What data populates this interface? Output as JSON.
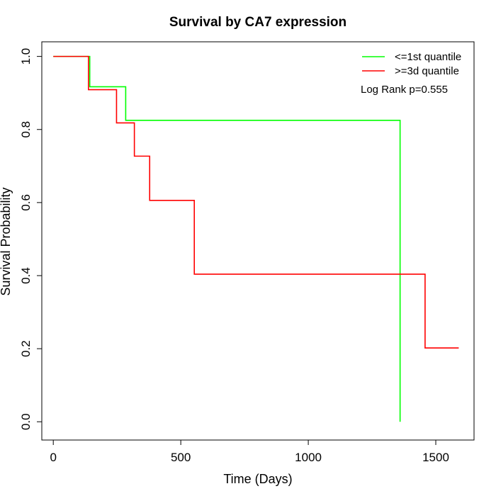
{
  "chart_data": {
    "type": "line",
    "subtype": "kaplan-meier step",
    "title": "Survival by CA7 expression",
    "xlabel": "Time (Days)",
    "ylabel": "Survival Probability",
    "xlim": [
      -45,
      1650
    ],
    "ylim": [
      -0.05,
      1.04
    ],
    "xticks": [
      0,
      500,
      1000,
      1500
    ],
    "yticks": [
      0.0,
      0.2,
      0.4,
      0.6,
      0.8,
      1.0
    ],
    "xtick_labels": [
      "0",
      "500",
      "1000",
      "1500"
    ],
    "ytick_labels": [
      "0.0",
      "0.2",
      "0.4",
      "0.6",
      "0.8",
      "1.0"
    ],
    "grid": false,
    "legend_position": "top-right",
    "annotation": "Log Rank p=0.555",
    "series": [
      {
        "name": "<=1st quantile",
        "color": "#00ff00",
        "steps": [
          {
            "x": 0,
            "y": 1.0
          },
          {
            "x": 143,
            "y": 0.917
          },
          {
            "x": 284,
            "y": 0.825
          },
          {
            "x": 1360,
            "y": 0.0
          }
        ],
        "end_x": 1360
      },
      {
        "name": ">=3d quantile",
        "color": "#ff0000",
        "steps": [
          {
            "x": 0,
            "y": 1.0
          },
          {
            "x": 138,
            "y": 0.909
          },
          {
            "x": 248,
            "y": 0.818
          },
          {
            "x": 318,
            "y": 0.727
          },
          {
            "x": 378,
            "y": 0.606
          },
          {
            "x": 553,
            "y": 0.404
          },
          {
            "x": 1458,
            "y": 0.202
          }
        ],
        "end_x": 1590
      }
    ]
  }
}
